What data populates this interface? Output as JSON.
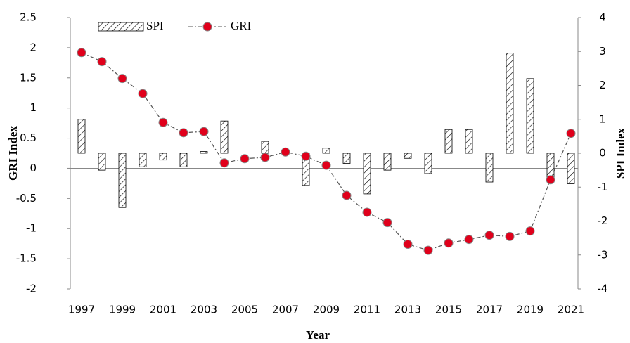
{
  "chart_data": {
    "type": "bar",
    "x_label": "Year",
    "y_label": "GRI Index",
    "y2_label": "SPI Index",
    "categories": [
      "1997",
      null,
      "1999",
      null,
      "2001",
      null,
      "2003",
      null,
      "2005",
      null,
      "2007",
      null,
      "2009",
      null,
      "2011",
      null,
      "2013",
      null,
      "2015",
      null,
      "2017",
      null,
      "2019",
      null,
      "2021"
    ],
    "ylim": [
      -2,
      2.5
    ],
    "yticks": [
      -2,
      -1.5,
      -1,
      -0.5,
      0,
      0.5,
      1,
      1.5,
      2,
      2.5
    ],
    "y2lim": [
      -4,
      4
    ],
    "y2ticks": [
      -4,
      -3,
      -2,
      -1,
      0,
      1,
      2,
      3,
      4
    ],
    "grid": false,
    "legend": "top-left",
    "series": [
      {
        "name": "SPI",
        "type": "bar",
        "axis": "y2",
        "color": "#000000",
        "values": [
          1.0,
          -0.5,
          -1.6,
          -0.4,
          -0.2,
          -0.4,
          0.05,
          0.95,
          0,
          0.35,
          0,
          -0.95,
          0.15,
          -0.3,
          -1.2,
          -0.5,
          -0.15,
          -0.6,
          0.7,
          0.7,
          -0.85,
          2.95,
          2.2,
          -0.75,
          -0.9
        ]
      },
      {
        "name": "GRI",
        "type": "line",
        "color": "#e0001b",
        "values": [
          1.92,
          1.77,
          1.49,
          1.24,
          0.76,
          0.59,
          0.61,
          0.09,
          0.16,
          0.18,
          0.27,
          0.2,
          0.05,
          -0.45,
          -0.73,
          -0.9,
          -1.26,
          -1.36,
          -1.24,
          -1.18,
          -1.11,
          -1.13,
          -1.04,
          -0.19,
          0.58
        ]
      }
    ]
  }
}
